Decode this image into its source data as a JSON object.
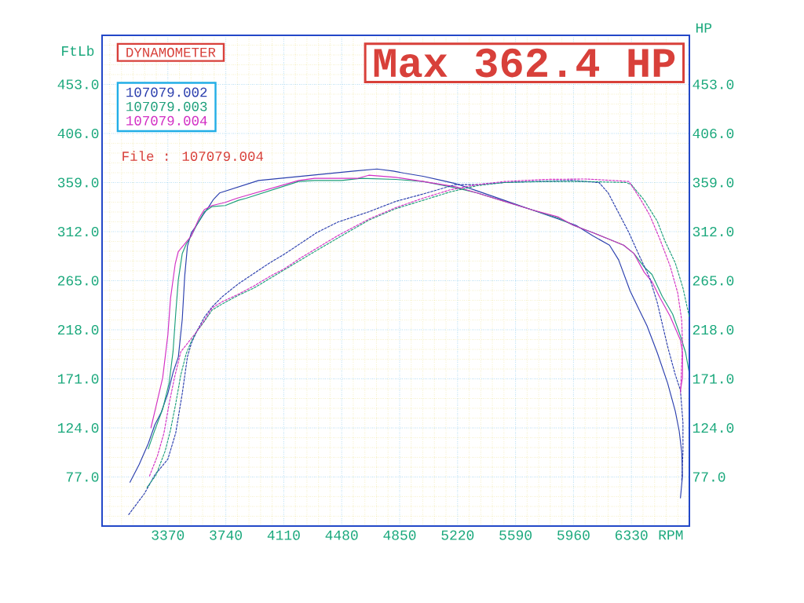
{
  "chart_data": {
    "type": "line",
    "title": "DYNAMOMETER",
    "xlabel": "RPM",
    "ylabel": "FtLb",
    "y2label": "HP",
    "annotations": [
      "Max 362.4 HP",
      "File : 107079.004"
    ],
    "xlim": [
      2950,
      6700
    ],
    "ylim": [
      30,
      500
    ],
    "y2lim": [
      30,
      500
    ],
    "xticks": [
      {
        "value": 3000,
        "label": null
      },
      {
        "value": 3074,
        "label": null
      },
      {
        "value": 3148,
        "label": null
      },
      {
        "value": 3222,
        "label": null
      },
      {
        "value": 3296,
        "label": null
      },
      3370,
      {
        "value": 3444,
        "label": null
      },
      {
        "value": 3518,
        "label": null
      },
      {
        "value": 3592,
        "label": null
      },
      {
        "value": 3666,
        "label": null
      },
      3740,
      {
        "value": 3814,
        "label": null
      },
      {
        "value": 3888,
        "label": null
      },
      {
        "value": 3962,
        "label": null
      },
      {
        "value": 4036,
        "label": null
      },
      4110,
      {
        "value": 4184,
        "label": null
      },
      {
        "value": 4258,
        "label": null
      },
      {
        "value": 4332,
        "label": null
      },
      {
        "value": 4406,
        "label": null
      },
      4480,
      {
        "value": 4554,
        "label": null
      },
      {
        "value": 4628,
        "label": null
      },
      {
        "value": 4702,
        "label": null
      },
      {
        "value": 4776,
        "label": null
      },
      4850,
      {
        "value": 4924,
        "label": null
      },
      {
        "value": 4998,
        "label": null
      },
      {
        "value": 5072,
        "label": null
      },
      {
        "value": 5146,
        "label": null
      },
      5220,
      {
        "value": 5294,
        "label": null
      },
      {
        "value": 5368,
        "label": null
      },
      {
        "value": 5442,
        "label": null
      },
      {
        "value": 5516,
        "label": null
      },
      5590,
      {
        "value": 5664,
        "label": null
      },
      {
        "value": 5738,
        "label": null
      },
      {
        "value": 5812,
        "label": null
      },
      {
        "value": 5886,
        "label": null
      },
      5960,
      {
        "value": 6034,
        "label": null
      },
      {
        "value": 6108,
        "label": null
      },
      {
        "value": 6182,
        "label": null
      },
      {
        "value": 6256,
        "label": null
      },
      6330,
      {
        "value": 6404,
        "label": null
      },
      {
        "value": 6478,
        "label": null
      },
      {
        "value": 6552,
        "label": null
      },
      {
        "value": 6626,
        "label": null
      }
    ],
    "yticks": [
      {
        "value": 39.4,
        "label": null
      },
      {
        "value": 48.8,
        "label": null
      },
      {
        "value": 58.2,
        "label": null
      },
      {
        "value": 67.6,
        "label": null
      },
      {
        "value": 77,
        "label": "77.0"
      },
      {
        "value": 86.4,
        "label": null
      },
      {
        "value": 95.8,
        "label": null
      },
      {
        "value": 105.2,
        "label": null
      },
      {
        "value": 114.6,
        "label": null
      },
      {
        "value": 124,
        "label": "124.0"
      },
      {
        "value": 133.4,
        "label": null
      },
      {
        "value": 142.8,
        "label": null
      },
      {
        "value": 152.2,
        "label": null
      },
      {
        "value": 161.6,
        "label": null
      },
      {
        "value": 171,
        "label": "171.0"
      },
      {
        "value": 180.4,
        "label": null
      },
      {
        "value": 189.8,
        "label": null
      },
      {
        "value": 199.2,
        "label": null
      },
      {
        "value": 208.6,
        "label": null
      },
      {
        "value": 218,
        "label": "218.0"
      },
      {
        "value": 227.4,
        "label": null
      },
      {
        "value": 236.8,
        "label": null
      },
      {
        "value": 246.2,
        "label": null
      },
      {
        "value": 255.6,
        "label": null
      },
      {
        "value": 265,
        "label": "265.0"
      },
      {
        "value": 274.4,
        "label": null
      },
      {
        "value": 283.8,
        "label": null
      },
      {
        "value": 293.2,
        "label": null
      },
      {
        "value": 302.6,
        "label": null
      },
      {
        "value": 312,
        "label": "312.0"
      },
      {
        "value": 321.4,
        "label": null
      },
      {
        "value": 330.8,
        "label": null
      },
      {
        "value": 340.2,
        "label": null
      },
      {
        "value": 349.6,
        "label": null
      },
      {
        "value": 359,
        "label": "359.0"
      },
      {
        "value": 368.4,
        "label": null
      },
      {
        "value": 377.8,
        "label": null
      },
      {
        "value": 387.2,
        "label": null
      },
      {
        "value": 396.6,
        "label": null
      },
      {
        "value": 406,
        "label": "406.0"
      },
      {
        "value": 415.4,
        "label": null
      },
      {
        "value": 424.8,
        "label": null
      },
      {
        "value": 434.2,
        "label": null
      },
      {
        "value": 443.6,
        "label": null
      },
      {
        "value": 453,
        "label": "453.0"
      },
      {
        "value": 462.4,
        "label": null
      },
      {
        "value": 471.8,
        "label": null
      },
      {
        "value": 481.2,
        "label": null
      },
      {
        "value": 490.6,
        "label": null
      }
    ],
    "y2ticks": [
      {
        "value": 77,
        "label": "77.0"
      },
      {
        "value": 124,
        "label": "124.0"
      },
      {
        "value": 171,
        "label": "171.0"
      },
      {
        "value": 218,
        "label": "218.0"
      },
      {
        "value": 265,
        "label": "265.0"
      },
      {
        "value": 312,
        "label": "312.0"
      },
      {
        "value": 359,
        "label": "359.0"
      },
      {
        "value": 406,
        "label": "406.0"
      },
      {
        "value": 453,
        "label": "453.0"
      }
    ],
    "grid": true,
    "legend": "top left",
    "series": [
      {
        "name": "107079.002",
        "color": "#2b3fae",
        "line_style": "solid",
        "x": [
          3128,
          3187,
          3245,
          3287,
          3328,
          3370,
          3403,
          3437,
          3462,
          3478,
          3495,
          3520,
          3553,
          3595,
          3628,
          3662,
          3700,
          3949,
          4558,
          4705,
          4809,
          4878,
          4999,
          5120,
          5207,
          5345,
          5518,
          5691,
          5864,
          5976,
          6083,
          6190,
          6248,
          6322,
          6380,
          6429,
          6495,
          6561,
          6610,
          6635,
          6651,
          6656,
          6643
        ],
        "values": [
          72,
          89,
          109,
          127,
          139,
          157,
          177,
          192,
          228,
          270,
          298,
          311,
          318,
          328,
          335,
          343,
          349,
          361,
          370,
          372,
          370,
          368,
          365,
          361,
          358,
          351,
          342,
          333,
          324,
          318,
          308,
          299,
          285,
          255,
          237,
          222,
          196,
          167,
          140,
          121,
          101,
          78,
          57
        ]
      },
      {
        "name": "107079.003",
        "color": "#1c9f7a",
        "line_style": "solid",
        "x": [
          3245,
          3287,
          3337,
          3378,
          3403,
          3420,
          3437,
          3462,
          3487,
          3520,
          3553,
          3603,
          3653,
          3737,
          3820,
          3870,
          4205,
          4307,
          4480,
          4601,
          4826,
          4999,
          5207,
          5345,
          5518,
          5691,
          5864,
          5960,
          6083,
          6182,
          6280,
          6346,
          6412,
          6461,
          6527,
          6593,
          6643,
          6676,
          6700
        ],
        "values": [
          104,
          122,
          142,
          167,
          197,
          233,
          266,
          291,
          300,
          308,
          318,
          331,
          336,
          337,
          342,
          344,
          360,
          361,
          361,
          363,
          362,
          360,
          354,
          349,
          341,
          333,
          325,
          318,
          311,
          305,
          299,
          291,
          278,
          271,
          250,
          233,
          212,
          196,
          176
        ]
      },
      {
        "name": "107079.004",
        "color": "#d22fc4",
        "line_style": "solid",
        "x": [
          3262,
          3295,
          3337,
          3370,
          3387,
          3417,
          3437,
          3487,
          3520,
          3570,
          3603,
          3653,
          3737,
          3811,
          4205,
          4307,
          4411,
          4579,
          4653,
          4826,
          4999,
          5207,
          5345,
          5518,
          5691,
          5864,
          5960,
          6083,
          6182,
          6280,
          6346,
          6412,
          6461,
          6511,
          6577,
          6643,
          6656,
          6656,
          6643
        ],
        "values": [
          124,
          145,
          172,
          213,
          248,
          281,
          293,
          302,
          308,
          325,
          333,
          337,
          340,
          344,
          361,
          363,
          363,
          363,
          366,
          364,
          360,
          355,
          349,
          341,
          333,
          326,
          318,
          311,
          305,
          299,
          291,
          273,
          264,
          249,
          231,
          208,
          196,
          172,
          160
        ]
      },
      {
        "color": "#2b3fae",
        "line_style": "dashed",
        "axis": "y2",
        "x": [
          3120,
          3220,
          3287,
          3370,
          3420,
          3462,
          3495,
          3520,
          3553,
          3603,
          3653,
          3720,
          3820,
          3920,
          4020,
          4120,
          4220,
          4320,
          4453,
          4653,
          4826,
          4999,
          5207,
          5345,
          5518,
          5691,
          5950,
          6123,
          6182,
          6248,
          6314,
          6380,
          6446,
          6495,
          6528,
          6561,
          6610,
          6643,
          6659,
          6659,
          6651
        ],
        "values": [
          41,
          61,
          79,
          94,
          119,
          157,
          192,
          205,
          216,
          230,
          240,
          250,
          262,
          272,
          282,
          291,
          301,
          311,
          321,
          331,
          341,
          348,
          357,
          357,
          359,
          360,
          361,
          359,
          349,
          330,
          311,
          289,
          268,
          244,
          223,
          202,
          175,
          160,
          129,
          101,
          73
        ]
      },
      {
        "color": "#1c9f7a",
        "line_style": "dashed",
        "axis": "y2",
        "x": [
          3237,
          3295,
          3353,
          3387,
          3420,
          3453,
          3487,
          3520,
          3553,
          3603,
          3653,
          3720,
          3820,
          3920,
          4020,
          4120,
          4220,
          4320,
          4480,
          4653,
          4826,
          4999,
          5172,
          5345,
          5518,
          5777,
          6037,
          6297,
          6330,
          6412,
          6495,
          6544,
          6610,
          6659,
          6700
        ],
        "values": [
          67,
          79,
          102,
          122,
          147,
          175,
          195,
          207,
          216,
          226,
          237,
          243,
          251,
          258,
          267,
          276,
          285,
          294,
          308,
          323,
          334,
          342,
          350,
          356,
          359,
          360,
          360,
          359,
          357,
          342,
          322,
          303,
          282,
          258,
          230
        ]
      },
      {
        "color": "#d22fc4",
        "line_style": "dashed",
        "axis": "y2",
        "x": [
          3253,
          3303,
          3345,
          3378,
          3412,
          3453,
          3495,
          3553,
          3603,
          3653,
          3720,
          3820,
          3920,
          4020,
          4120,
          4220,
          4320,
          4453,
          4653,
          4826,
          4999,
          5172,
          5345,
          5518,
          5777,
          6037,
          6210,
          6314,
          6380,
          6446,
          6511,
          6577,
          6626,
          6651,
          6656,
          6651,
          6643
        ],
        "values": [
          78,
          97,
          119,
          147,
          172,
          197,
          205,
          216,
          227,
          239,
          245,
          252,
          260,
          269,
          277,
          287,
          296,
          308,
          324,
          335,
          344,
          352,
          357,
          360,
          362,
          362.4,
          361,
          360,
          345,
          328,
          305,
          279,
          253,
          227,
          206,
          185,
          157
        ]
      }
    ]
  }
}
